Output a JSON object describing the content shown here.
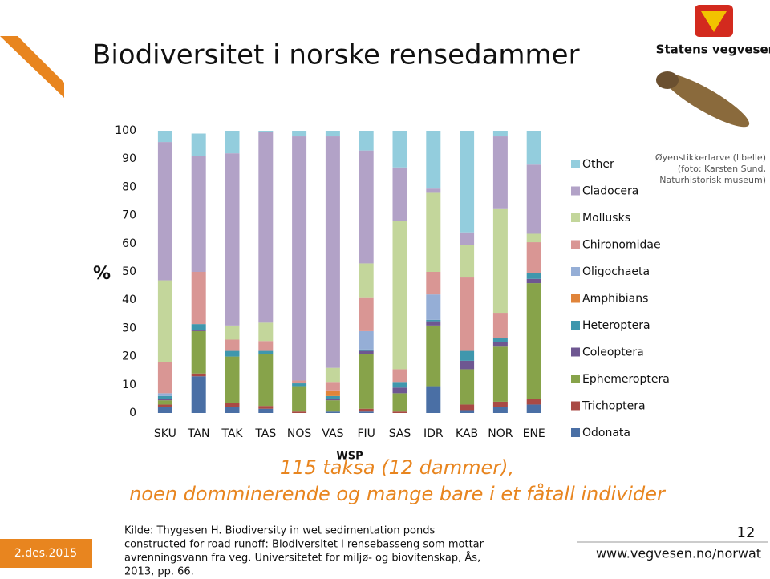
{
  "chart_data": {
    "type": "stacked-bar",
    "ylabel": "%",
    "annotation": "WSP",
    "categories": [
      "SKU",
      "TAN",
      "TAK",
      "TAS",
      "NOS",
      "VAS",
      "FIU",
      "SAS",
      "IDR",
      "KAB",
      "NOR",
      "ENE"
    ],
    "series": [
      {
        "name": "Odonata",
        "color": "#4a6fa5",
        "values": [
          2,
          13,
          2,
          1.5,
          0,
          0.5,
          0.5,
          0,
          9.5,
          1,
          2,
          3
        ]
      },
      {
        "name": "Trichoptera",
        "color": "#a94a45",
        "values": [
          1,
          1,
          1.5,
          1,
          0.5,
          0,
          1,
          0.5,
          0,
          2,
          2,
          2
        ]
      },
      {
        "name": "Ephemeroptera",
        "color": "#87a34a",
        "values": [
          1.5,
          15,
          16.5,
          18.5,
          9,
          4,
          19.5,
          6.5,
          21.5,
          12.5,
          19.5,
          41
        ]
      },
      {
        "name": "Coleoptera",
        "color": "#6e5791",
        "values": [
          0.5,
          0.5,
          0,
          0,
          0,
          0.5,
          1,
          2,
          1.5,
          3,
          1.5,
          1.5
        ]
      },
      {
        "name": "Heteroptera",
        "color": "#3f97ad",
        "values": [
          1,
          2,
          2,
          1,
          1,
          1,
          0.5,
          2,
          0.5,
          3.5,
          1.5,
          2
        ]
      },
      {
        "name": "Amphibians",
        "color": "#e0843a",
        "values": [
          0,
          0,
          0,
          0,
          0,
          2,
          0,
          0,
          0,
          0,
          0,
          0
        ]
      },
      {
        "name": "Oligochaeta",
        "color": "#95aed6",
        "values": [
          1,
          0,
          0,
          0,
          0,
          0,
          6.5,
          0,
          9,
          0,
          0,
          0
        ]
      },
      {
        "name": "Chironomidae",
        "color": "#d99694",
        "values": [
          11,
          18.5,
          4,
          3.5,
          1,
          3,
          12,
          4.5,
          8,
          26,
          9,
          11
        ]
      },
      {
        "name": "Mollusks",
        "color": "#c3d69b",
        "values": [
          29,
          0,
          5,
          6.5,
          0,
          5,
          12,
          52.5,
          28,
          11.5,
          37,
          3
        ]
      },
      {
        "name": "Cladocera",
        "color": "#b2a2c7",
        "values": [
          49,
          41,
          61,
          67.5,
          86.5,
          82,
          40,
          19,
          1.5,
          4.5,
          25.5,
          24.5
        ]
      },
      {
        "name": "Other",
        "color": "#93cddd",
        "values": [
          4,
          8,
          8,
          0.5,
          2,
          2,
          7,
          13,
          20.5,
          36,
          2,
          12
        ]
      }
    ],
    "ylim": [
      0,
      100
    ],
    "yticks": [
      0,
      10,
      20,
      30,
      40,
      50,
      60,
      70,
      80,
      90,
      100
    ],
    "grid": false
  },
  "slide": {
    "title": "Biodiversitet i norske rensedammer",
    "subtitle": [
      "115 taksa (12 dammer),",
      "noen domminerende og mange bare i et fåtall individer"
    ],
    "source": [
      "Kilde: Thygesen H. Biodiversity in wet sedimentation ponds",
      "constructed for road runoff: Biodiversitet i rensebasseng som mottar",
      "avrenningsvann fra veg. Universitetet for miljø- og biovitenskap, Ås,",
      "2013, pp. 66."
    ],
    "photo_credit": [
      "Øyenstikkerlarve (libelle)",
      "(foto: Karsten Sund,",
      "Naturhistorisk museum)"
    ],
    "brand": "Statens vegvesen",
    "date": "2.des.2015",
    "page": "12",
    "url": "www.vegvesen.no/norwat"
  }
}
